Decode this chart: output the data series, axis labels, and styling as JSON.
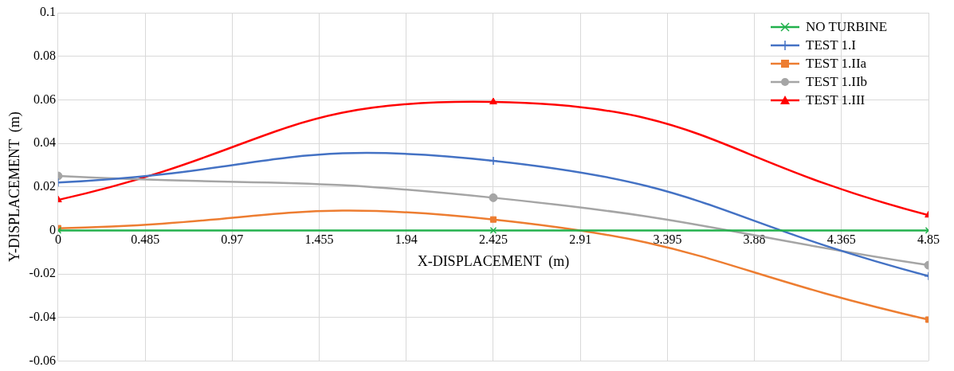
{
  "chart_data": {
    "type": "line",
    "xlabel": "X-DISPLACEMENT  (m)",
    "ylabel": "Y-DISPLACEMENT  (m)",
    "x": [
      0,
      2.425,
      4.85
    ],
    "series": [
      {
        "name": "NO TURBINE",
        "color": "#22b14c",
        "marker": "cross",
        "values": [
          0,
          0,
          0
        ]
      },
      {
        "name": "TEST 1.I",
        "color": "#4472c4",
        "marker": "plus",
        "values": [
          0.022,
          0.032,
          -0.021
        ]
      },
      {
        "name": "TEST 1.IIa",
        "color": "#ed7d31",
        "marker": "square",
        "values": [
          0.001,
          0.005,
          -0.041
        ]
      },
      {
        "name": "TEST 1.IIb",
        "color": "#a5a5a5",
        "marker": "circle",
        "values": [
          0.025,
          0.015,
          -0.016
        ]
      },
      {
        "name": "TEST 1.III",
        "color": "#ff0000",
        "marker": "triangle",
        "values": [
          0.014,
          0.059,
          0.007
        ]
      }
    ],
    "xlim": [
      0,
      4.85
    ],
    "xticks": [
      0,
      0.485,
      0.97,
      1.455,
      1.94,
      2.425,
      2.91,
      3.395,
      3.88,
      4.365,
      4.85
    ],
    "ylim": [
      -0.06,
      0.1
    ],
    "yticks": [
      -0.06,
      -0.04,
      -0.02,
      0,
      0.02,
      0.04,
      0.06,
      0.08,
      0.1
    ],
    "grid": true,
    "legend": "top right",
    "line_style": "solid"
  }
}
